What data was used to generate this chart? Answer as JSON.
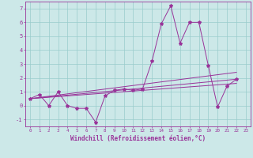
{
  "title": "",
  "xlabel": "Windchill (Refroidissement éolien,°C)",
  "background_color": "#cce8e8",
  "grid_color": "#99cccc",
  "line_color": "#993399",
  "marker_color": "#993399",
  "xlim": [
    -0.5,
    23.5
  ],
  "ylim": [
    -1.5,
    7.5
  ],
  "yticks": [
    -1,
    0,
    1,
    2,
    3,
    4,
    5,
    6,
    7
  ],
  "xticks": [
    0,
    1,
    2,
    3,
    4,
    5,
    6,
    7,
    8,
    9,
    10,
    11,
    12,
    13,
    14,
    15,
    16,
    17,
    18,
    19,
    20,
    21,
    22,
    23
  ],
  "series1_x": [
    0,
    1,
    2,
    3,
    4,
    5,
    6,
    7,
    8,
    9,
    10,
    11,
    12,
    13,
    14,
    15,
    16,
    17,
    18,
    19,
    20,
    21,
    22
  ],
  "series1_y": [
    0.5,
    0.8,
    0.0,
    1.0,
    0.0,
    -0.2,
    -0.2,
    -1.2,
    0.7,
    1.1,
    1.2,
    1.1,
    1.2,
    3.2,
    5.9,
    7.2,
    4.5,
    6.0,
    6.0,
    2.9,
    -0.1,
    1.4,
    1.9
  ],
  "series2_x": [
    0,
    22
  ],
  "series2_y": [
    0.5,
    1.9
  ],
  "series3_x": [
    0,
    22
  ],
  "series3_y": [
    0.5,
    2.4
  ],
  "series4_x": [
    0,
    22
  ],
  "series4_y": [
    0.5,
    1.6
  ],
  "figsize": [
    3.2,
    2.0
  ],
  "dpi": 100
}
